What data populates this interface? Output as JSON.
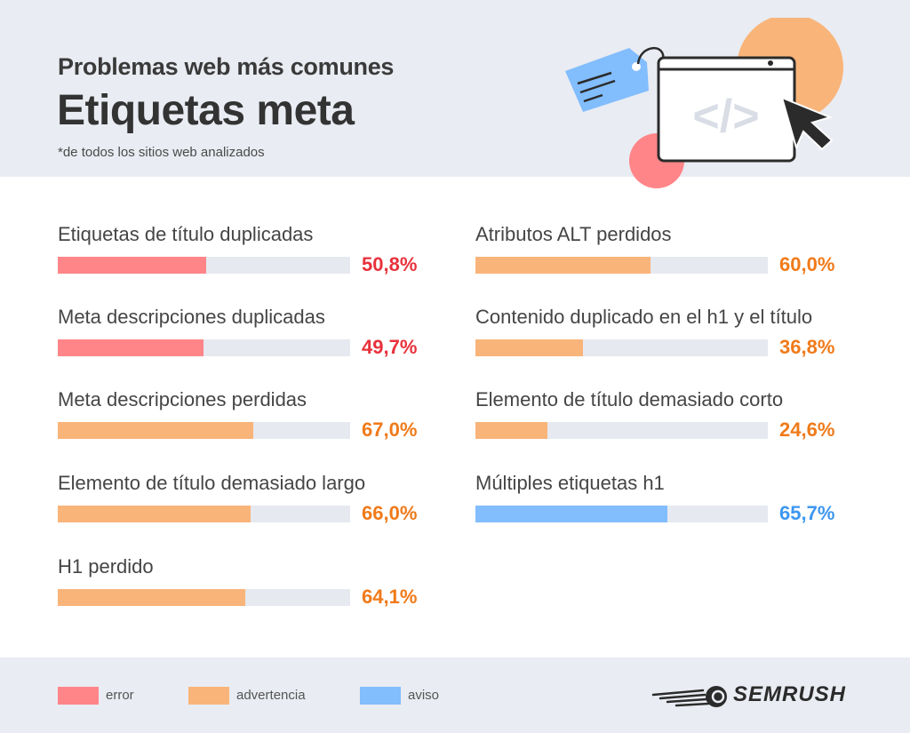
{
  "header": {
    "subtitle": "Problemas web más comunes",
    "title": "Etiquetas meta",
    "note": "*de todos los sitios web analizados"
  },
  "colors": {
    "error": "#ff8589",
    "warning": "#f9b47a",
    "notice": "#82bdfd",
    "error_text": "#e8313b",
    "warning_text": "#f07a19",
    "notice_text": "#3d97f0",
    "track": "#e6e9ef",
    "background_panel": "#e9ecf2"
  },
  "chart_data": {
    "type": "bar",
    "orientation": "horizontal",
    "xlim": [
      0,
      100
    ],
    "unit": "%",
    "items": [
      {
        "label": "Etiquetas de título duplicadas",
        "value": 50.8,
        "display": "50,8%",
        "category": "error",
        "column": 1
      },
      {
        "label": "Meta descripciones duplicadas",
        "value": 49.7,
        "display": "49,7%",
        "category": "error",
        "column": 1
      },
      {
        "label": "Meta descripciones perdidas",
        "value": 67.0,
        "display": "67,0%",
        "category": "advertencia",
        "column": 1
      },
      {
        "label": "Elemento de título demasiado largo",
        "value": 66.0,
        "display": "66,0%",
        "category": "advertencia",
        "column": 1
      },
      {
        "label": "H1 perdido",
        "value": 64.1,
        "display": "64,1%",
        "category": "advertencia",
        "column": 1
      },
      {
        "label": "Atributos ALT perdidos",
        "value": 60.0,
        "display": "60,0%",
        "category": "advertencia",
        "column": 2
      },
      {
        "label": "Contenido duplicado en el h1 y el título",
        "value": 36.8,
        "display": "36,8%",
        "category": "advertencia",
        "column": 2
      },
      {
        "label": "Elemento de título demasiado corto",
        "value": 24.6,
        "display": "24,6%",
        "category": "advertencia",
        "column": 2
      },
      {
        "label": "Múltiples etiquetas h1",
        "value": 65.7,
        "display": "65,7%",
        "category": "aviso",
        "column": 2
      }
    ]
  },
  "legend": [
    {
      "key": "error",
      "label": "error"
    },
    {
      "key": "advertencia",
      "label": "advertencia"
    },
    {
      "key": "aviso",
      "label": "aviso"
    }
  ],
  "brand": {
    "name": "SEMRUSH",
    "icon": "semrush-fireball-icon"
  },
  "illustration": {
    "icons": [
      "price-tag-icon",
      "code-window-icon",
      "cursor-arrow-icon"
    ],
    "code_symbol": "</>"
  }
}
